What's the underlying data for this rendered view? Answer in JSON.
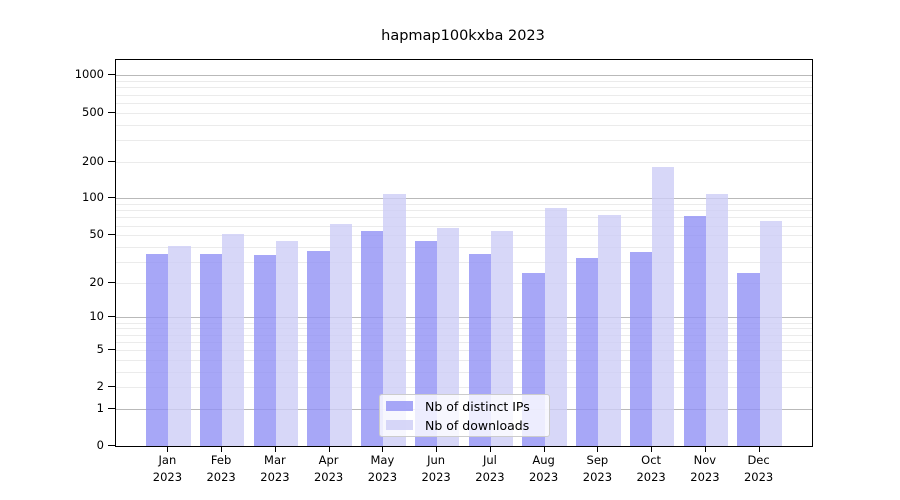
{
  "title": "hapmap100kxba 2023",
  "chart_data": {
    "type": "bar",
    "title": "hapmap100kxba 2023",
    "categories": [
      "Jan",
      "Feb",
      "Mar",
      "Apr",
      "May",
      "Jun",
      "Jul",
      "Aug",
      "Sep",
      "Oct",
      "Nov",
      "Dec"
    ],
    "year_label": "2023",
    "series": [
      {
        "name": "Nb of distinct IPs",
        "color": "rgba(145,145,245,0.8)",
        "values": [
          35,
          35,
          34,
          37,
          54,
          45,
          35,
          24,
          32,
          36,
          72,
          24
        ]
      },
      {
        "name": "Nb of downloads",
        "color": "rgba(205,205,246,0.8)",
        "values": [
          41,
          51,
          45,
          62,
          108,
          57,
          54,
          84,
          73,
          180,
          108,
          65
        ]
      }
    ],
    "xlabel": "",
    "ylabel": "",
    "yscale": "log1p",
    "yticks": [
      1000,
      500,
      200,
      100,
      50,
      20,
      10,
      5,
      2,
      1,
      0
    ],
    "major_gridlines": [
      1,
      10,
      100,
      1000
    ],
    "minor_gridlines": [
      2,
      3,
      4,
      5,
      6,
      7,
      8,
      9,
      20,
      30,
      40,
      50,
      60,
      70,
      80,
      90,
      200,
      300,
      400,
      500,
      600,
      700,
      800,
      900
    ],
    "ylim": [
      0,
      1333
    ],
    "grid": "horizontal",
    "legend_position": "lower center"
  },
  "colors": {
    "background": "#ffffff",
    "axes_frame": "#000000",
    "major_grid": "#b9b9b9",
    "minor_grid": "#ebebeb",
    "bar_distinct_ips": "rgba(145,145,245,0.8)",
    "bar_downloads": "rgba(205,205,246,0.8)",
    "legend_border": "#cccccc",
    "legend_background": "rgba(255,255,255,0.8)"
  }
}
